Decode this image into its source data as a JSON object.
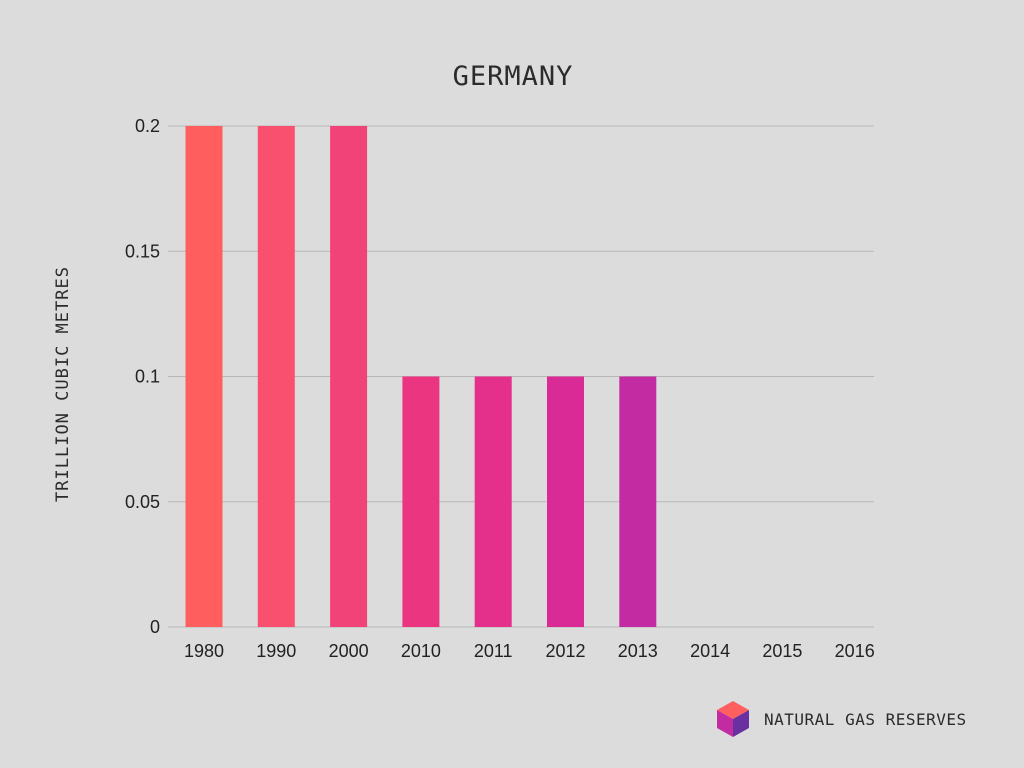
{
  "chart_data": {
    "type": "bar",
    "title": "GERMANY",
    "xlabel": "",
    "ylabel": "TRILLION CUBIC METRES",
    "categories": [
      "1980",
      "1990",
      "2000",
      "2010",
      "2011",
      "2012",
      "2013",
      "2014",
      "2015",
      "2016"
    ],
    "values": [
      0.2,
      0.2,
      0.2,
      0.1,
      0.1,
      0.1,
      0.1,
      null,
      null,
      null
    ],
    "ylim": [
      0,
      0.2
    ],
    "yticks": [
      "0",
      "0.05",
      "0.1",
      "0.15",
      "0.2"
    ],
    "grid": true,
    "bar_colors": [
      "#ff5e5e",
      "#f8506e",
      "#f24378",
      "#ec3581",
      "#e42f8b",
      "#d92a95",
      "#c22ba2"
    ]
  },
  "brand": {
    "text": "NATURAL GAS RESERVES",
    "icon": "cube-icon",
    "colors": [
      "#ff5f5f",
      "#c22ba2",
      "#6a2fa0"
    ]
  }
}
